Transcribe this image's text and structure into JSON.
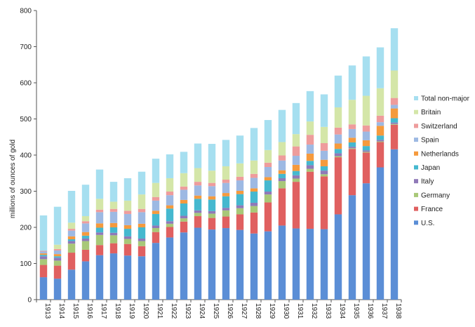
{
  "chart_data": {
    "type": "bar",
    "stacked": true,
    "ylabel": "millions of ounces of gold",
    "ylim": [
      0,
      800
    ],
    "yticks": [
      0,
      100,
      200,
      300,
      400,
      500,
      600,
      700,
      800
    ],
    "grid": false,
    "legend_position": "right",
    "categories": [
      "1913",
      "1914",
      "1915",
      "1916",
      "1917",
      "1918",
      "1919",
      "1920",
      "1921",
      "1922",
      "1923",
      "1924",
      "1925",
      "1926",
      "1927",
      "1928",
      "1929",
      "1930",
      "1931",
      "1932",
      "1933",
      "1934",
      "1935",
      "1936",
      "1937",
      "1938"
    ],
    "series": [
      {
        "name": "U.S.",
        "color": "#5b8ed6",
        "values": [
          62,
          58,
          83,
          106,
          123,
          128,
          122,
          120,
          157,
          172,
          186,
          199,
          194,
          198,
          193,
          183,
          189,
          205,
          197,
          196,
          195,
          236,
          289,
          322,
          366,
          416
        ]
      },
      {
        "name": "France",
        "color": "#e06060",
        "values": [
          34,
          36,
          47,
          32,
          28,
          28,
          32,
          28,
          30,
          29,
          30,
          32,
          32,
          32,
          43,
          58,
          80,
          103,
          129,
          158,
          146,
          158,
          128,
          85,
          70,
          68
        ]
      },
      {
        "name": "Germany",
        "color": "#a8c878",
        "values": [
          16,
          14,
          25,
          24,
          28,
          22,
          14,
          14,
          11,
          9,
          9,
          9,
          12,
          17,
          17,
          18,
          22,
          20,
          9,
          8,
          6,
          3,
          2,
          2,
          2,
          2
        ]
      },
      {
        "name": "Italy",
        "color": "#8f79b8",
        "values": [
          8,
          8,
          7,
          7,
          7,
          7,
          7,
          7,
          7,
          7,
          7,
          7,
          7,
          7,
          8,
          9,
          8,
          8,
          9,
          10,
          10,
          8,
          4,
          4,
          4,
          4
        ]
      },
      {
        "name": "Japan",
        "color": "#45b8cf",
        "values": [
          4,
          4,
          5,
          8,
          13,
          15,
          21,
          31,
          32,
          35,
          34,
          32,
          32,
          32,
          31,
          31,
          31,
          12,
          12,
          12,
          12,
          12,
          12,
          12,
          12,
          12
        ]
      },
      {
        "name": "Netherlands",
        "color": "#f59a3d",
        "values": [
          4,
          6,
          8,
          10,
          12,
          12,
          10,
          10,
          9,
          9,
          10,
          9,
          9,
          9,
          9,
          9,
          9,
          10,
          17,
          20,
          18,
          15,
          13,
          16,
          27,
          27
        ]
      },
      {
        "name": "Spain",
        "color": "#9db9e3",
        "values": [
          5,
          10,
          16,
          24,
          31,
          31,
          31,
          32,
          28,
          28,
          28,
          28,
          28,
          28,
          29,
          29,
          28,
          27,
          25,
          25,
          25,
          25,
          24,
          24,
          10,
          10
        ]
      },
      {
        "name": "Switzerland",
        "color": "#ee9c9c",
        "values": [
          2,
          4,
          5,
          6,
          7,
          8,
          9,
          9,
          10,
          10,
          9,
          10,
          9,
          9,
          10,
          11,
          12,
          14,
          26,
          27,
          21,
          19,
          13,
          17,
          18,
          19
        ]
      },
      {
        "name": "Britain",
        "color": "#d4e6a8",
        "values": [
          0,
          12,
          17,
          14,
          30,
          20,
          28,
          40,
          39,
          37,
          37,
          38,
          34,
          37,
          37,
          37,
          35,
          37,
          34,
          37,
          45,
          56,
          68,
          82,
          76,
          76
        ]
      },
      {
        "name": "Total non-major",
        "color": "#a6dff0",
        "values": [
          98,
          105,
          88,
          87,
          81,
          55,
          62,
          63,
          67,
          66,
          59,
          68,
          74,
          73,
          77,
          90,
          83,
          89,
          86,
          84,
          90,
          88,
          95,
          109,
          113,
          117
        ]
      }
    ]
  }
}
